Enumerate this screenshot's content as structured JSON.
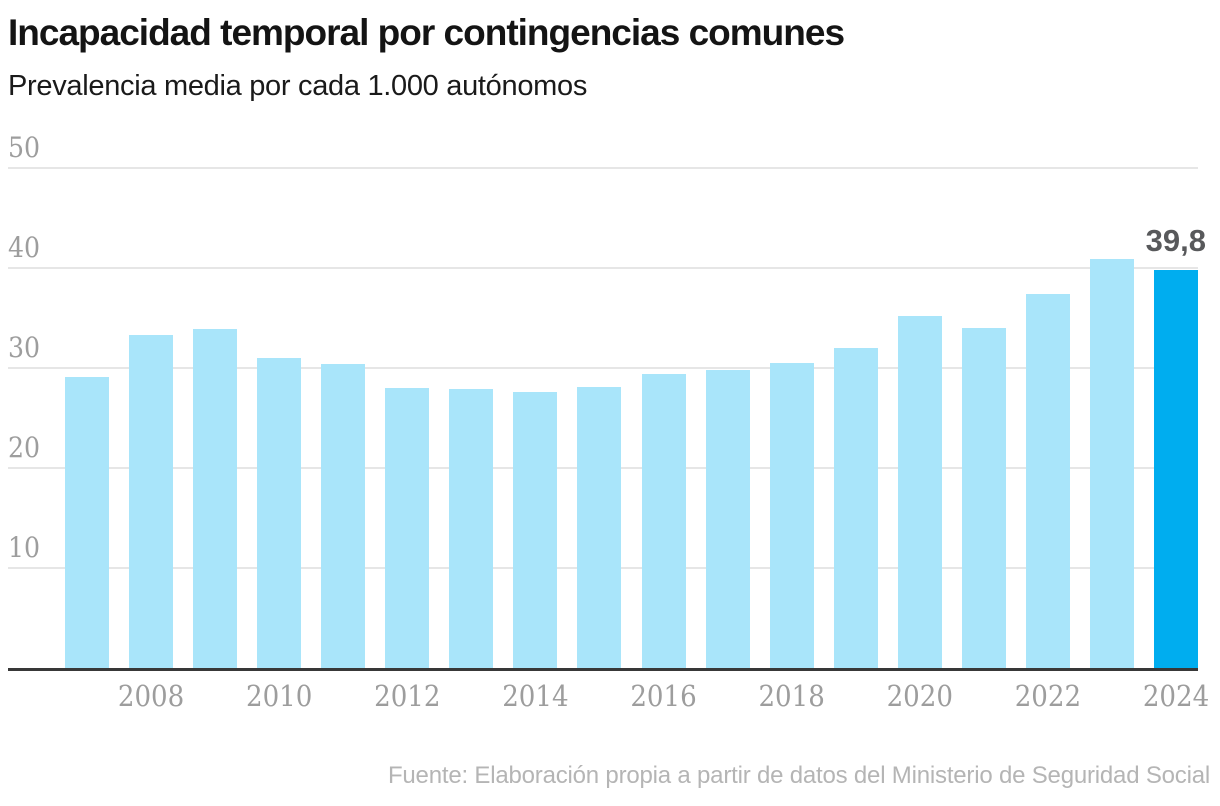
{
  "chart_data": {
    "type": "bar",
    "title": "Incapacidad temporal por contingencias comunes",
    "subtitle": "Prevalencia media por cada 1.000 autónomos",
    "source": "Fuente: Elaboración propia a partir de datos del Ministerio de Seguridad Social",
    "categories": [
      "2007",
      "2008",
      "2009",
      "2010",
      "2011",
      "2012",
      "2013",
      "2014",
      "2015",
      "2016",
      "2017",
      "2018",
      "2019",
      "2020",
      "2021",
      "2022",
      "2023",
      "2024"
    ],
    "values": [
      29.1,
      33.3,
      33.9,
      31.0,
      30.4,
      28.0,
      27.9,
      27.6,
      28.1,
      29.4,
      29.8,
      30.5,
      32.0,
      35.2,
      34.0,
      37.4,
      40.9,
      39.8
    ],
    "highlight_category": "2024",
    "value_labels": {
      "2024": "39,8"
    },
    "x_tick_labels": [
      "2008",
      "2010",
      "2012",
      "2014",
      "2016",
      "2018",
      "2020",
      "2022",
      "2024"
    ],
    "y_ticks": [
      10,
      20,
      30,
      40,
      50
    ],
    "ylim": [
      0,
      50
    ],
    "grid": true,
    "legend": "none",
    "colors": {
      "bar": "#A9E5FA",
      "bar_highlight": "#00ADEF",
      "grid": "#E6E6E6",
      "axis_line": "#383838",
      "tick_text": "#9D9D9D",
      "value_label": "#58595B",
      "title_text": "#141414",
      "subtitle_text": "#1A1A1A",
      "source_text": "#B5B5B5"
    }
  }
}
